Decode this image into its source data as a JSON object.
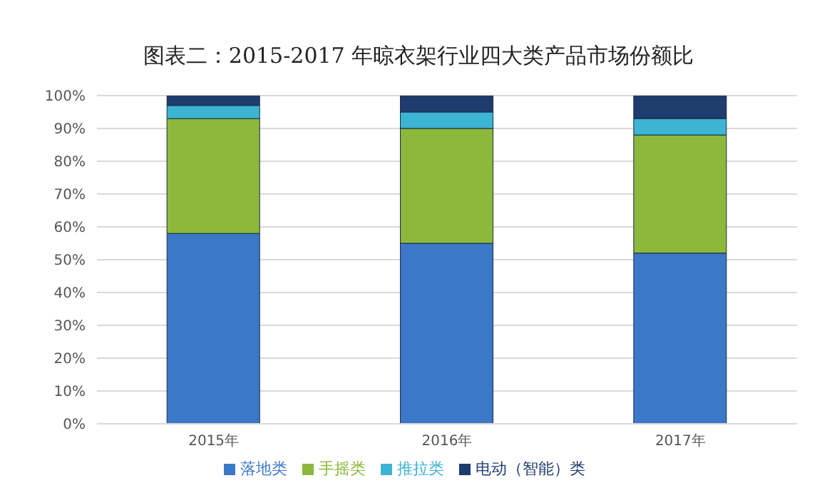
{
  "chart_data": {
    "type": "bar",
    "stacked": true,
    "title": "图表二：2015-2017 年晾衣架行业四大类产品市场份额比",
    "categories": [
      "2015年",
      "2016年",
      "2017年"
    ],
    "series": [
      {
        "name": "落地类",
        "color": "#3c78c8",
        "values": [
          58,
          55,
          52
        ]
      },
      {
        "name": "手摇类",
        "color": "#8cb83c",
        "values": [
          35,
          35,
          36
        ]
      },
      {
        "name": "推拉类",
        "color": "#3cb4d2",
        "values": [
          4,
          5,
          5
        ]
      },
      {
        "name": "电动（智能）类",
        "color": "#1e3c6e",
        "values": [
          3,
          5,
          7
        ]
      }
    ],
    "ylim": [
      0,
      100
    ],
    "yticks": [
      {
        "value": 0,
        "label": "0%"
      },
      {
        "value": 10,
        "label": "10%"
      },
      {
        "value": 20,
        "label": "20%"
      },
      {
        "value": 30,
        "label": "30%"
      },
      {
        "value": 40,
        "label": "40%"
      },
      {
        "value": 50,
        "label": "50%"
      },
      {
        "value": 60,
        "label": "60%"
      },
      {
        "value": 70,
        "label": "70%"
      },
      {
        "value": 80,
        "label": "80%"
      },
      {
        "value": 90,
        "label": "90%"
      },
      {
        "value": 100,
        "label": "100%"
      }
    ],
    "grid": "y",
    "legend": "bottom"
  }
}
